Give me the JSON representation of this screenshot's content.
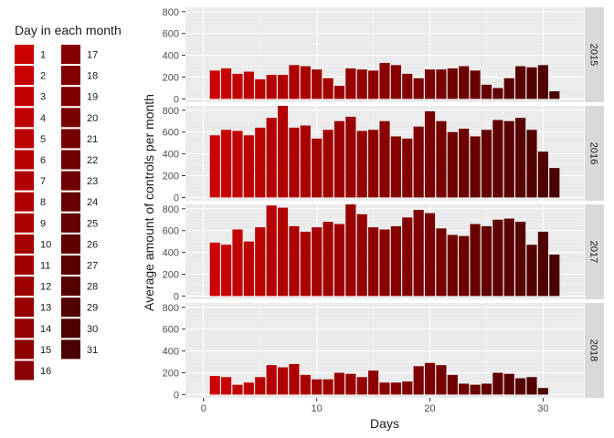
{
  "chart_data": {
    "type": "bar",
    "xlabel": "Days",
    "ylabel": "Average amount of controls per month",
    "xlim": [
      -1.6,
      33.6
    ],
    "ylim": [
      -30,
      840
    ],
    "xticks": [
      0,
      10,
      20,
      30
    ],
    "yticks": [
      0,
      200,
      400,
      600,
      800
    ],
    "legend": {
      "title": "Day in each month",
      "placement": "left",
      "entries": [
        "1",
        "2",
        "3",
        "4",
        "5",
        "6",
        "7",
        "8",
        "9",
        "10",
        "11",
        "12",
        "13",
        "14",
        "15",
        "16",
        "17",
        "18",
        "19",
        "20",
        "21",
        "22",
        "23",
        "24",
        "25",
        "26",
        "27",
        "28",
        "29",
        "30",
        "31"
      ]
    },
    "colors": {
      "day_first": "#cc0000",
      "day_last": "#4a0000",
      "panel_bg": "#ebebeb",
      "grid_major": "#ffffff",
      "strip_bg": "#d9d9d9"
    },
    "x": [
      1,
      2,
      3,
      4,
      5,
      6,
      7,
      8,
      9,
      10,
      11,
      12,
      13,
      14,
      15,
      16,
      17,
      18,
      19,
      20,
      21,
      22,
      23,
      24,
      25,
      26,
      27,
      28,
      29,
      30,
      31
    ],
    "panels": [
      {
        "strip": "2015",
        "values": [
          260,
          280,
          230,
          250,
          180,
          220,
          220,
          310,
          300,
          270,
          190,
          120,
          280,
          270,
          260,
          330,
          310,
          230,
          190,
          270,
          270,
          280,
          300,
          260,
          130,
          100,
          190,
          300,
          290,
          310,
          70
        ]
      },
      {
        "strip": "2016",
        "values": [
          570,
          620,
          610,
          570,
          640,
          730,
          840,
          640,
          660,
          540,
          620,
          700,
          740,
          610,
          620,
          700,
          560,
          540,
          650,
          790,
          700,
          600,
          630,
          560,
          620,
          710,
          700,
          730,
          620,
          420,
          270
        ]
      },
      {
        "strip": "2017",
        "values": [
          490,
          470,
          610,
          500,
          630,
          830,
          810,
          640,
          590,
          630,
          680,
          660,
          840,
          750,
          630,
          610,
          640,
          720,
          790,
          760,
          620,
          560,
          550,
          660,
          640,
          700,
          710,
          680,
          470,
          590,
          380
        ]
      },
      {
        "strip": "2018",
        "values": [
          170,
          160,
          90,
          110,
          160,
          270,
          250,
          280,
          180,
          140,
          140,
          200,
          190,
          160,
          220,
          110,
          110,
          120,
          260,
          290,
          270,
          180,
          100,
          90,
          100,
          200,
          190,
          150,
          160,
          60,
          0
        ]
      }
    ]
  }
}
